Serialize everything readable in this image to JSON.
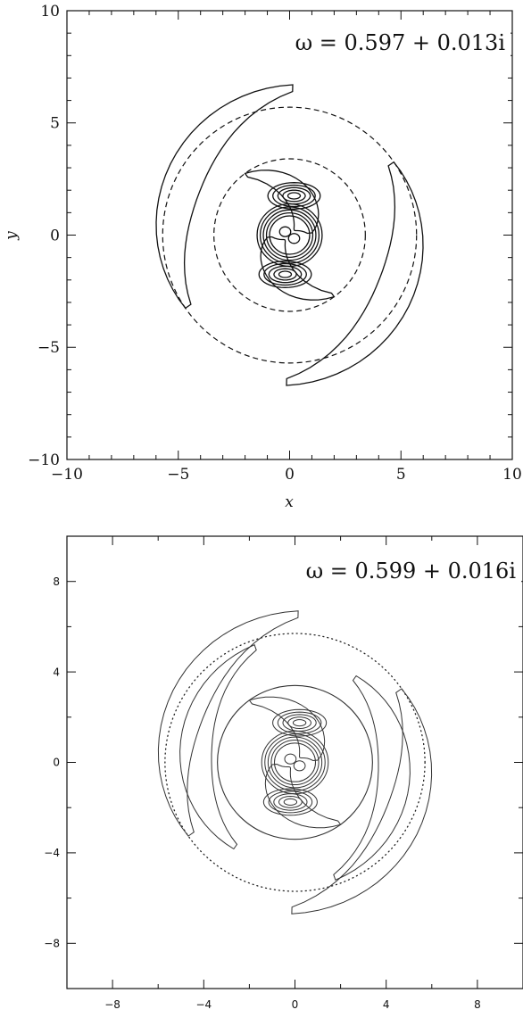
{
  "chart_data": [
    {
      "type": "contour",
      "annotation": "ω = 0.597 + 0.013i",
      "xlabel": "x",
      "ylabel": "y",
      "xlim": [
        -10,
        10
      ],
      "ylim": [
        -10,
        10
      ],
      "xticks": [
        -10,
        -5,
        0,
        5,
        10
      ],
      "yticks": [
        -10,
        -5,
        0,
        5,
        10
      ],
      "xtick_labels": [
        "−10",
        "−5",
        "0",
        "5",
        "10"
      ],
      "ytick_labels": [
        "−10",
        "−5",
        "0",
        "5",
        "10"
      ],
      "reference_circles": [
        {
          "style": "dashed",
          "radius": 5.7
        },
        {
          "style": "dashed",
          "radius": 3.4
        }
      ],
      "arm_count": 2
    },
    {
      "type": "contour",
      "annotation": "ω = 0.599 + 0.016i",
      "xlabel": "",
      "ylabel": "",
      "xlim": [
        -10,
        10
      ],
      "ylim": [
        -10,
        10
      ],
      "xticks": [
        -8,
        -4,
        0,
        4,
        8
      ],
      "yticks": [
        -8,
        -4,
        0,
        4,
        8
      ],
      "xtick_labels": [
        "−8",
        "−4",
        "0",
        "4",
        "8"
      ],
      "ytick_labels": [
        "−8",
        "−4",
        "0",
        "4",
        "8"
      ],
      "reference_circles": [
        {
          "style": "dotted",
          "radius": 5.7
        },
        {
          "style": "solid",
          "radius": 3.4
        }
      ],
      "arm_count": 2
    }
  ]
}
